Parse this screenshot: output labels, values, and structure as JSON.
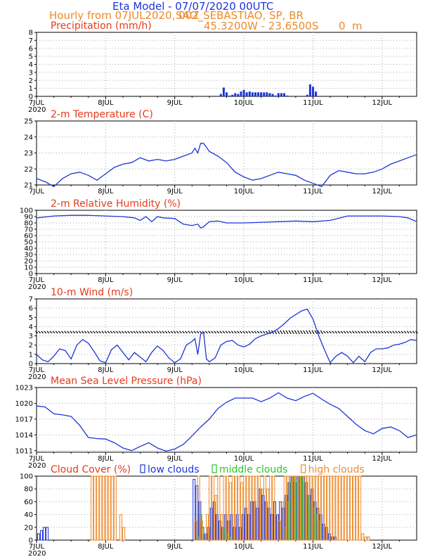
{
  "header": {
    "title": "Eta Model - 07/07/2020 00UTC",
    "subtitle_left": "Hourly from 07JUL2020, 00Z",
    "subtitle_right": "SAO_SEBASTIAO, SP, BR",
    "coords": "45.3200W - 23.6500S      0  m"
  },
  "colors": {
    "red": "#e53a1c",
    "blue": "#1c35d8",
    "orange": "#ec8b2c",
    "green": "#2ac52a",
    "grid": "#aaaaaa"
  },
  "x_axis": {
    "range_hours": [
      0,
      132
    ],
    "ticks": [
      {
        "hour": 0,
        "label": "7JUL"
      },
      {
        "hour": 24,
        "label": "8JUL"
      },
      {
        "hour": 48,
        "label": "9JUL"
      },
      {
        "hour": 72,
        "label": "10JUL"
      },
      {
        "hour": 96,
        "label": "11JUL"
      },
      {
        "hour": 120,
        "label": "12JUL"
      }
    ],
    "year_label": "2020"
  },
  "chart_data": [
    {
      "id": "precip",
      "type": "bar",
      "title": "Precipitation (mm/h)",
      "ylim": [
        0,
        8
      ],
      "yticks": [
        0,
        1,
        2,
        3,
        4,
        5,
        6,
        7,
        8
      ],
      "show_year": true,
      "x": [
        64,
        65,
        66,
        67,
        68,
        69,
        70,
        71,
        72,
        73,
        74,
        75,
        76,
        77,
        78,
        79,
        80,
        81,
        82,
        83,
        84,
        85,
        86,
        87,
        94,
        95,
        96,
        97
      ],
      "values": [
        0.3,
        1.1,
        0.5,
        0.1,
        0.2,
        0.4,
        0.3,
        0.6,
        0.8,
        0.5,
        0.6,
        0.5,
        0.5,
        0.5,
        0.5,
        0.5,
        0.5,
        0.4,
        0.3,
        0.1,
        0.4,
        0.4,
        0.4,
        0.1,
        0.2,
        1.5,
        1.2,
        0.6
      ]
    },
    {
      "id": "temp",
      "type": "line",
      "title": "2-m Temperature (C)",
      "ylim": [
        21,
        25
      ],
      "yticks": [
        21,
        22,
        23,
        24,
        25
      ],
      "show_year": false,
      "x": [
        0,
        3,
        6,
        9,
        12,
        15,
        18,
        21,
        24,
        27,
        30,
        33,
        36,
        39,
        42,
        45,
        48,
        51,
        54,
        55,
        56,
        57,
        58,
        60,
        63,
        66,
        69,
        72,
        75,
        78,
        81,
        84,
        87,
        90,
        93,
        96,
        99,
        102,
        105,
        108,
        111,
        114,
        117,
        120,
        123,
        126,
        129,
        132
      ],
      "values": [
        21.4,
        21.2,
        20.9,
        21.4,
        21.7,
        21.8,
        21.6,
        21.3,
        21.7,
        22.1,
        22.3,
        22.4,
        22.7,
        22.5,
        22.6,
        22.5,
        22.6,
        22.8,
        23.0,
        23.3,
        23.0,
        23.6,
        23.6,
        23.1,
        22.8,
        22.4,
        21.8,
        21.5,
        21.3,
        21.4,
        21.6,
        21.8,
        21.7,
        21.6,
        21.3,
        21.1,
        20.9,
        21.6,
        21.9,
        21.8,
        21.7,
        21.7,
        21.8,
        22.0,
        22.3,
        22.5,
        22.7,
        22.9
      ]
    },
    {
      "id": "rh",
      "type": "line",
      "title": "2-m Relative Humidity (%)",
      "ylim": [
        0,
        100
      ],
      "yticks": [
        0,
        10,
        20,
        30,
        40,
        50,
        60,
        70,
        80,
        90,
        100
      ],
      "show_year": true,
      "x": [
        0,
        6,
        12,
        18,
        24,
        30,
        34,
        36,
        38,
        40,
        42,
        44,
        48,
        51,
        54,
        56,
        57,
        58,
        60,
        63,
        66,
        69,
        72,
        78,
        84,
        90,
        96,
        102,
        108,
        114,
        120,
        126,
        129,
        132
      ],
      "values": [
        88,
        91,
        92,
        92,
        91,
        90,
        88,
        84,
        90,
        82,
        90,
        88,
        87,
        78,
        76,
        78,
        72,
        74,
        82,
        83,
        80,
        80,
        80,
        81,
        82,
        83,
        82,
        84,
        91,
        91,
        91,
        90,
        88,
        82
      ]
    },
    {
      "id": "wind",
      "type": "line",
      "title": "10-m Wind (m/s)",
      "ylim": [
        0,
        7
      ],
      "yticks": [
        0,
        1,
        2,
        3,
        4,
        5,
        6,
        7
      ],
      "show_year": true,
      "barbs_level": 3.4,
      "x": [
        0,
        2,
        4,
        6,
        8,
        10,
        12,
        14,
        16,
        18,
        20,
        22,
        24,
        26,
        28,
        30,
        32,
        34,
        36,
        38,
        40,
        42,
        44,
        46,
        48,
        50,
        52,
        54,
        55,
        56,
        57,
        58,
        59,
        60,
        62,
        64,
        66,
        68,
        70,
        72,
        74,
        76,
        78,
        80,
        82,
        84,
        86,
        88,
        90,
        92,
        94,
        96,
        98,
        100,
        102,
        104,
        106,
        108,
        110,
        112,
        114,
        116,
        118,
        120,
        122,
        124,
        126,
        128,
        130,
        132
      ],
      "values": [
        1.0,
        0.4,
        0.2,
        0.8,
        1.6,
        1.4,
        0.5,
        2.0,
        2.6,
        2.2,
        1.3,
        0.3,
        0.1,
        1.5,
        2.0,
        1.2,
        0.4,
        1.2,
        0.7,
        0.2,
        1.2,
        1.9,
        1.4,
        0.6,
        0.1,
        0.5,
        2.0,
        2.4,
        2.7,
        1.0,
        3.2,
        3.4,
        0.5,
        0.2,
        0.6,
        2.0,
        2.4,
        2.5,
        2.0,
        1.8,
        2.1,
        2.7,
        3.0,
        3.2,
        3.4,
        3.8,
        4.3,
        4.9,
        5.3,
        5.7,
        5.9,
        4.8,
        3.0,
        1.5,
        0.1,
        0.8,
        1.2,
        0.8,
        0.1,
        0.8,
        0.2,
        1.2,
        1.6,
        1.6,
        1.7,
        2.0,
        2.1,
        2.3,
        2.6,
        2.5
      ]
    },
    {
      "id": "mslp",
      "type": "line",
      "title": "Mean Sea Level Pressure (hPa)",
      "ylim": [
        1010.7,
        1023
      ],
      "yticks": [
        1011,
        1014,
        1017,
        1020,
        1023
      ],
      "show_year": true,
      "x": [
        0,
        3,
        6,
        9,
        12,
        15,
        18,
        21,
        24,
        27,
        30,
        33,
        36,
        39,
        42,
        45,
        48,
        51,
        54,
        57,
        60,
        63,
        66,
        69,
        72,
        75,
        78,
        81,
        84,
        87,
        90,
        93,
        96,
        99,
        102,
        105,
        108,
        111,
        114,
        117,
        120,
        123,
        126,
        129,
        132
      ],
      "values": [
        1019.5,
        1019.3,
        1018.0,
        1017.8,
        1017.5,
        1015.8,
        1013.5,
        1013.3,
        1013.2,
        1012.5,
        1011.5,
        1011.0,
        1011.8,
        1012.5,
        1011.5,
        1010.9,
        1011.3,
        1012.2,
        1013.8,
        1015.5,
        1017.0,
        1019.0,
        1020.2,
        1021.0,
        1021.0,
        1021.0,
        1020.3,
        1021.0,
        1022.0,
        1021.0,
        1020.5,
        1021.3,
        1021.9,
        1020.8,
        1019.8,
        1019.0,
        1017.5,
        1016.0,
        1014.8,
        1014.2,
        1015.2,
        1015.5,
        1014.8,
        1013.5,
        1014.0
      ]
    },
    {
      "id": "cloud",
      "type": "bar",
      "title": "Cloud Cover (%)",
      "ylim": [
        0,
        100
      ],
      "yticks": [
        0,
        20,
        40,
        60,
        80,
        100
      ],
      "show_year": true,
      "legend": [
        {
          "label": "low clouds",
          "color": "#1c35d8"
        },
        {
          "label": "middle clouds",
          "color": "#2ac52a"
        },
        {
          "label": "high clouds",
          "color": "#ec8b2c"
        }
      ],
      "series": [
        {
          "name": "low clouds",
          "x": [
            1,
            2,
            3,
            4,
            55,
            56,
            57,
            58,
            59,
            60,
            61,
            62,
            63,
            64,
            65,
            66,
            67,
            68,
            69,
            70,
            71,
            72,
            73,
            74,
            75,
            76,
            77,
            78,
            79,
            80,
            81,
            82,
            83,
            84,
            85,
            86,
            87,
            88,
            89,
            90,
            91,
            92,
            93,
            94,
            95,
            96,
            97,
            98,
            99,
            100,
            101,
            102,
            103,
            104
          ],
          "values": [
            10,
            15,
            20,
            20,
            95,
            85,
            60,
            20,
            10,
            20,
            50,
            60,
            40,
            30,
            20,
            40,
            30,
            40,
            20,
            40,
            20,
            40,
            50,
            40,
            60,
            60,
            50,
            80,
            70,
            60,
            50,
            40,
            60,
            40,
            60,
            50,
            70,
            90,
            100,
            90,
            100,
            100,
            100,
            90,
            70,
            80,
            60,
            50,
            40,
            25,
            20,
            10,
            5,
            5
          ]
        },
        {
          "name": "middle clouds",
          "x": [
            56,
            57,
            65,
            66,
            67,
            86,
            87,
            88,
            89,
            90,
            91,
            92,
            93,
            94,
            95,
            96,
            97,
            98
          ],
          "values": [
            5,
            40,
            20,
            10,
            5,
            20,
            60,
            90,
            100,
            95,
            100,
            100,
            90,
            70,
            60,
            50,
            40,
            30
          ]
        },
        {
          "name": "high clouds",
          "x": [
            19,
            20,
            21,
            22,
            23,
            24,
            25,
            26,
            27,
            29,
            30,
            55,
            56,
            57,
            58,
            59,
            60,
            61,
            62,
            63,
            64,
            65,
            66,
            67,
            68,
            69,
            70,
            71,
            72,
            73,
            74,
            75,
            76,
            77,
            78,
            79,
            80,
            81,
            82,
            83,
            84,
            85,
            86,
            87,
            88,
            89,
            90,
            91,
            92,
            93,
            94,
            95,
            96,
            97,
            98,
            99,
            100,
            101,
            102,
            103,
            104,
            105,
            106,
            107,
            108,
            109,
            110,
            111,
            112,
            113,
            114,
            115
          ],
          "values": [
            100,
            100,
            100,
            100,
            100,
            100,
            100,
            100,
            100,
            40,
            20,
            30,
            100,
            30,
            10,
            40,
            100,
            100,
            70,
            100,
            40,
            100,
            100,
            90,
            100,
            100,
            100,
            90,
            100,
            100,
            100,
            100,
            100,
            100,
            80,
            100,
            80,
            100,
            100,
            40,
            30,
            60,
            100,
            100,
            100,
            100,
            100,
            100,
            100,
            100,
            100,
            100,
            100,
            100,
            100,
            100,
            100,
            100,
            100,
            100,
            100,
            100,
            100,
            100,
            100,
            100,
            100,
            100,
            100,
            10,
            5,
            5
          ]
        }
      ]
    }
  ]
}
